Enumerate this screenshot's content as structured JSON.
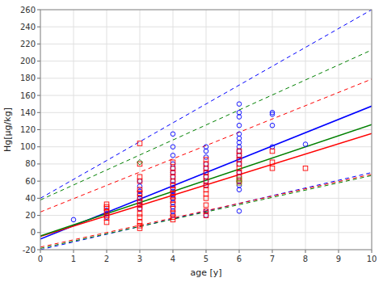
{
  "chart_data": {
    "type": "scatter",
    "xlabel": "age [y]",
    "ylabel": "Hg[µg/kg]",
    "xlim": [
      0,
      10
    ],
    "ylim": [
      -20,
      260
    ],
    "xticks": [
      0,
      1,
      2,
      3,
      4,
      5,
      6,
      7,
      8,
      9,
      10
    ],
    "yticks": [
      -20,
      0,
      20,
      40,
      60,
      80,
      100,
      120,
      140,
      160,
      180,
      200,
      220,
      240,
      260
    ],
    "grid": true,
    "series": [
      {
        "type": "line",
        "line_style": "dashed",
        "color": "#0000ff",
        "x": [
          0,
          10
        ],
        "values": [
          40.0,
          260.0
        ]
      },
      {
        "type": "line",
        "line_style": "dashed",
        "color": "#0000ff",
        "x": [
          0,
          10
        ],
        "values": [
          -20.0,
          70.0
        ]
      },
      {
        "type": "line",
        "line_style": "dashed",
        "color": "#ff0000",
        "x": [
          0,
          10
        ],
        "values": [
          24.0,
          179.0
        ]
      },
      {
        "type": "line",
        "line_style": "dashed",
        "color": "#ff0000",
        "x": [
          0,
          10
        ],
        "values": [
          -17.0,
          68.0
        ]
      },
      {
        "type": "line",
        "line_style": "dashed",
        "color": "#008000",
        "x": [
          0,
          10
        ],
        "values": [
          38.0,
          213.0
        ]
      },
      {
        "type": "line",
        "line_style": "dashed",
        "color": "#008000",
        "x": [
          0,
          10
        ],
        "values": [
          -18.5,
          66.5
        ]
      },
      {
        "type": "line",
        "line_style": "solid",
        "color": "#0000ff",
        "x": [
          0,
          10
        ],
        "values": [
          -7.5,
          147.5
        ]
      },
      {
        "type": "line",
        "line_style": "solid",
        "color": "#ff0000",
        "x": [
          0,
          10
        ],
        "values": [
          -4.5,
          115.5
        ]
      },
      {
        "type": "line",
        "line_style": "solid",
        "color": "#008000",
        "x": [
          0,
          10
        ],
        "values": [
          -4.0,
          126.0
        ]
      },
      {
        "type": "scatter",
        "marker": "circle",
        "color": "#0000ff",
        "x": [
          1.0,
          2.0,
          2.0,
          2.0,
          3.0,
          3.0,
          3.0,
          3.0,
          3.0,
          3.0,
          3.0,
          3.0,
          4.0,
          4.0,
          4.0,
          4.0,
          4.0,
          4.0,
          4.0,
          4.0,
          4.0,
          4.0,
          4.0,
          4.0,
          4.0,
          4.0,
          4.0,
          4.0,
          4.0,
          5.0,
          5.0,
          5.0,
          5.0,
          5.0,
          5.0,
          5.0,
          5.0,
          5.0,
          5.0,
          5.0,
          6.0,
          6.0,
          6.0,
          6.0,
          6.0,
          6.0,
          6.0,
          6.0,
          6.0,
          6.0,
          6.0,
          6.0,
          6.0,
          6.0,
          6.0,
          6.0,
          6.0,
          6.0,
          7.0,
          7.0,
          7.0,
          7.0,
          8.0
        ],
        "values": [
          15,
          18,
          22,
          26,
          28,
          32,
          36,
          40,
          44,
          48,
          54,
          60,
          20,
          25,
          30,
          35,
          40,
          44,
          48,
          52,
          56,
          60,
          65,
          70,
          75,
          80,
          90,
          100,
          115,
          20,
          25,
          55,
          60,
          65,
          70,
          75,
          80,
          88,
          95,
          100,
          25,
          50,
          55,
          60,
          65,
          70,
          80,
          85,
          90,
          95,
          100,
          105,
          110,
          115,
          125,
          135,
          140,
          150,
          100,
          125,
          138,
          140,
          103
        ]
      },
      {
        "type": "scatter",
        "marker": "square",
        "color": "#ff0000",
        "x": [
          2.0,
          2.0,
          2.0,
          2.0,
          2.0,
          2.0,
          2.0,
          3.0,
          3.0,
          3.0,
          3.0,
          3.0,
          3.0,
          3.0,
          3.0,
          3.0,
          3.0,
          3.0,
          3.0,
          3.0,
          3.0,
          3.0,
          4.0,
          4.0,
          4.0,
          4.0,
          4.0,
          4.0,
          4.0,
          4.0,
          4.0,
          4.0,
          4.0,
          4.0,
          4.0,
          4.0,
          4.0,
          5.0,
          5.0,
          5.0,
          5.0,
          5.0,
          5.0,
          5.0,
          5.0,
          5.0,
          5.0,
          5.0,
          5.0,
          5.0,
          6.0,
          6.0,
          6.0,
          6.0,
          6.0,
          6.0,
          6.0,
          6.0,
          7.0,
          7.0,
          7.0,
          8.0
        ],
        "values": [
          12,
          17,
          20,
          24,
          28,
          30,
          33,
          5,
          8,
          12,
          18,
          22,
          28,
          32,
          36,
          40,
          46,
          50,
          60,
          65,
          80,
          104,
          15,
          18,
          22,
          28,
          33,
          38,
          42,
          46,
          50,
          55,
          60,
          65,
          70,
          75,
          82,
          20,
          25,
          32,
          40,
          45,
          50,
          55,
          60,
          65,
          70,
          75,
          80,
          85,
          60,
          65,
          70,
          75,
          80,
          85,
          90,
          95,
          75,
          82,
          95,
          75
        ]
      },
      {
        "type": "scatter",
        "marker": "diamond",
        "color": "#008000",
        "x": [
          3.0
        ],
        "values": [
          82
        ]
      },
      {
        "type": "scatter",
        "marker": "square",
        "color": "#808000",
        "x": [
          6.0,
          6.0
        ],
        "values": [
          58,
          62
        ]
      }
    ]
  }
}
